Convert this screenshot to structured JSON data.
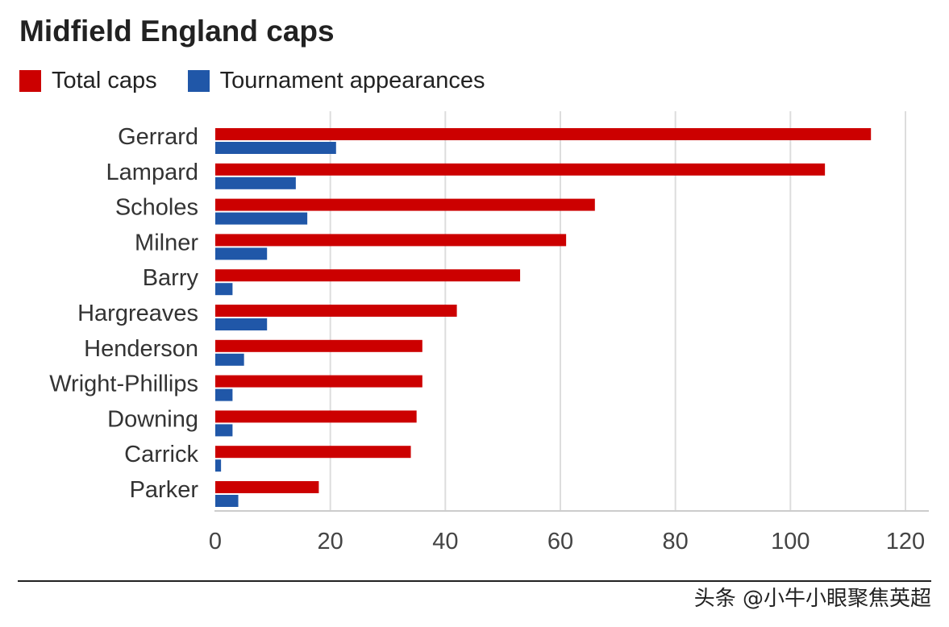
{
  "chart_data": {
    "type": "bar",
    "orientation": "horizontal",
    "title": "Midfield England caps",
    "categories": [
      "Gerrard",
      "Lampard",
      "Scholes",
      "Milner",
      "Barry",
      "Hargreaves",
      "Henderson",
      "Wright-Phillips",
      "Downing",
      "Carrick",
      "Parker"
    ],
    "series": [
      {
        "name": "Total caps",
        "color": "#cc0000",
        "values": [
          114,
          106,
          66,
          61,
          53,
          42,
          36,
          36,
          35,
          34,
          18
        ]
      },
      {
        "name": "Tournament appearances",
        "color": "#2057a8",
        "values": [
          21,
          14,
          16,
          9,
          3,
          9,
          5,
          3,
          3,
          1,
          4
        ]
      }
    ],
    "xlim": [
      0,
      120
    ],
    "xticks": [
      0,
      20,
      40,
      60,
      80,
      100,
      120
    ],
    "xlabel": "",
    "ylabel": "",
    "grid": true,
    "legend_position": "top-left"
  },
  "footer": {
    "watermark": "头条 @小牛小眼聚焦英超"
  }
}
